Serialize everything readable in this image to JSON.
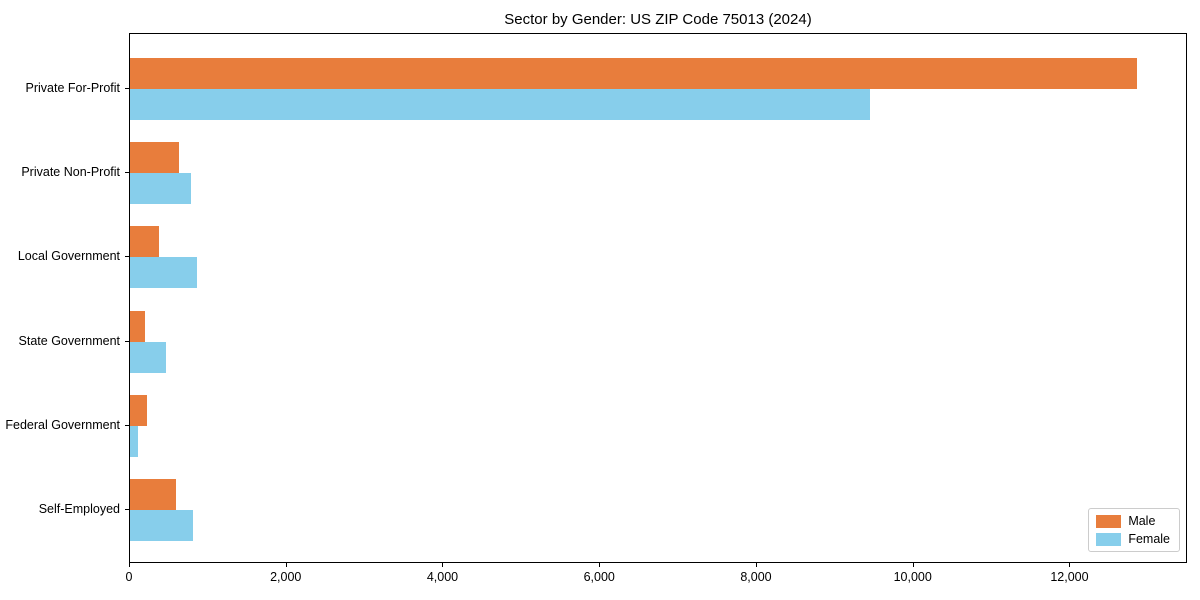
{
  "figure": {
    "title": "Sector by Gender: US ZIP Code 75013 (2024)"
  },
  "chart_data": {
    "type": "bar",
    "orientation": "horizontal",
    "title": "Sector by Gender: US ZIP Code 75013 (2024)",
    "categories": [
      "Private For-Profit",
      "Private Non-Profit",
      "Local Government",
      "State Government",
      "Federal Government",
      "Self-Employed"
    ],
    "series": [
      {
        "name": "Male",
        "color": "#e87d3c",
        "values": [
          12850,
          620,
          375,
          195,
          215,
          590
        ]
      },
      {
        "name": "Female",
        "color": "#87ceeb",
        "values": [
          9440,
          780,
          860,
          460,
          100,
          810
        ]
      }
    ],
    "xlabel": "",
    "ylabel": "",
    "xlim": [
      0,
      13500
    ],
    "xticks": {
      "values": [
        0,
        2000,
        4000,
        6000,
        8000,
        10000,
        12000
      ],
      "labels": [
        "0",
        "2,000",
        "4,000",
        "6,000",
        "8,000",
        "10,000",
        "12,000"
      ]
    },
    "grid": false,
    "legend": {
      "position": "lower right",
      "entries": [
        "Male",
        "Female"
      ]
    }
  }
}
